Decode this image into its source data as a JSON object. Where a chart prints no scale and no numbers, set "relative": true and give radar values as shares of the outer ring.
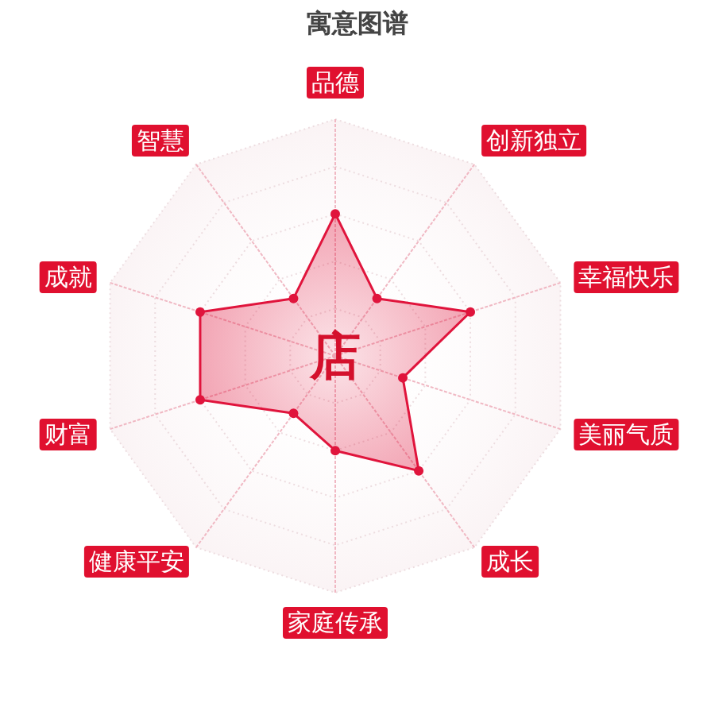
{
  "chart_data": {
    "type": "radar",
    "title": "寓意图谱",
    "categories": [
      "品德",
      "创新独立",
      "幸福快乐",
      "美丽气质",
      "成长",
      "家庭传承",
      "健康平安",
      "财富",
      "成就",
      "智慧"
    ],
    "relative": true,
    "series": [
      {
        "color": "#e0143c",
        "values": [
          0.6,
          0.3,
          0.6,
          0.3,
          0.6,
          0.4,
          0.3,
          0.6,
          0.6,
          0.3
        ]
      }
    ],
    "annotations": [
      "店"
    ],
    "grid": true,
    "marker": "circle"
  }
}
